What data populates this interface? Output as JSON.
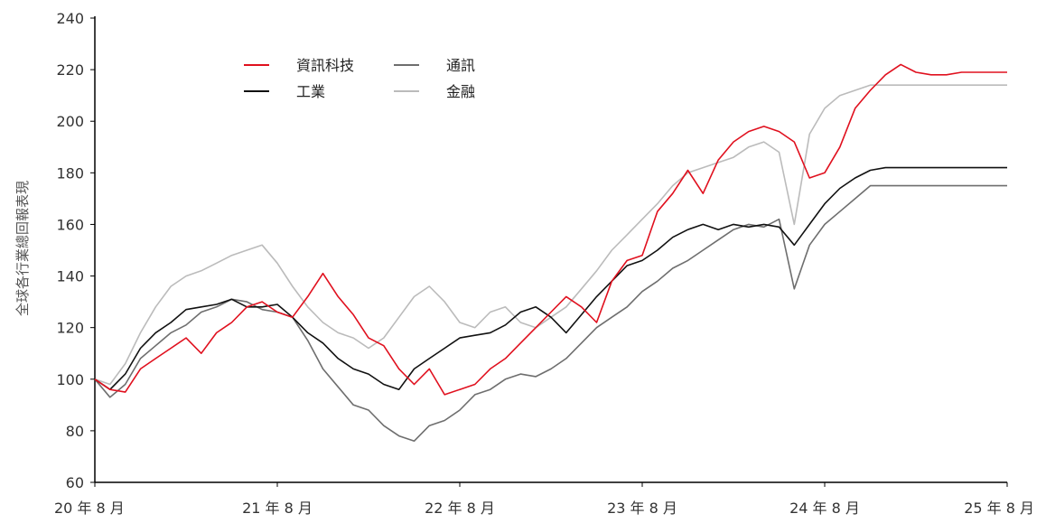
{
  "chart_data": {
    "type": "line",
    "title": "",
    "ylabel": "全球各行業總回報表現",
    "xlabel": "",
    "ylim": [
      60,
      240
    ],
    "y_ticks": [
      60,
      80,
      100,
      120,
      140,
      160,
      180,
      200,
      220,
      240
    ],
    "x_ticks": [
      "20 年 8 月",
      "21 年 8 月",
      "22 年 8 月",
      "23 年 8 月",
      "24 年 8 月",
      "25 年 8 月"
    ],
    "x_range": [
      0,
      60
    ],
    "x_unit": "months since 20 年 8 月",
    "legend": {
      "placement": "top-left",
      "columns": 2
    },
    "series": [
      {
        "name": "資訊科技",
        "color": "#e0101e",
        "x": [
          0,
          1,
          2,
          3,
          4,
          5,
          6,
          7,
          8,
          9,
          10,
          11,
          12,
          13,
          14,
          15,
          16,
          17,
          18,
          19,
          20,
          21,
          22,
          23,
          24,
          25,
          26,
          27,
          28,
          29,
          30,
          31,
          32,
          33,
          34,
          35,
          36,
          37,
          38,
          39,
          40,
          41,
          42,
          43,
          44,
          45,
          46,
          47,
          48,
          49,
          50,
          51,
          52,
          53,
          54,
          55,
          56,
          57,
          58,
          59,
          60
        ],
        "values": [
          100,
          96,
          95,
          104,
          108,
          112,
          116,
          110,
          118,
          122,
          128,
          130,
          126,
          124,
          132,
          141,
          132,
          125,
          116,
          113,
          104,
          98,
          104,
          94,
          96,
          98,
          104,
          108,
          114,
          120,
          126,
          132,
          128,
          122,
          138,
          146,
          148,
          165,
          172,
          181,
          172,
          185,
          192,
          196,
          198,
          196,
          192,
          178,
          180,
          190,
          205,
          212,
          218,
          222,
          219,
          218,
          218,
          219,
          219,
          219,
          219
        ]
      },
      {
        "name": "通訊",
        "color": "#6e6e6e",
        "x": [
          0,
          1,
          2,
          3,
          4,
          5,
          6,
          7,
          8,
          9,
          10,
          11,
          12,
          13,
          14,
          15,
          16,
          17,
          18,
          19,
          20,
          21,
          22,
          23,
          24,
          25,
          26,
          27,
          28,
          29,
          30,
          31,
          32,
          33,
          34,
          35,
          36,
          37,
          38,
          39,
          40,
          41,
          42,
          43,
          44,
          45,
          46,
          47,
          48,
          49,
          50,
          51,
          52,
          53,
          54,
          55,
          56,
          57,
          58,
          59,
          60
        ],
        "values": [
          100,
          93,
          98,
          108,
          113,
          118,
          121,
          126,
          128,
          131,
          130,
          127,
          126,
          124,
          115,
          104,
          97,
          90,
          88,
          82,
          78,
          76,
          82,
          84,
          88,
          94,
          96,
          100,
          102,
          101,
          104,
          108,
          114,
          120,
          124,
          128,
          134,
          138,
          143,
          146,
          150,
          154,
          158,
          160,
          159,
          162,
          135,
          152,
          160,
          165,
          170,
          175,
          175,
          175,
          175,
          175,
          175,
          175,
          175,
          175,
          175
        ]
      },
      {
        "name": "工業",
        "color": "#111111",
        "x": [
          0,
          1,
          2,
          3,
          4,
          5,
          6,
          7,
          8,
          9,
          10,
          11,
          12,
          13,
          14,
          15,
          16,
          17,
          18,
          19,
          20,
          21,
          22,
          23,
          24,
          25,
          26,
          27,
          28,
          29,
          30,
          31,
          32,
          33,
          34,
          35,
          36,
          37,
          38,
          39,
          40,
          41,
          42,
          43,
          44,
          45,
          46,
          47,
          48,
          49,
          50,
          51,
          52,
          53,
          54,
          55,
          56,
          57,
          58,
          59,
          60
        ],
        "values": [
          100,
          96,
          102,
          112,
          118,
          122,
          127,
          128,
          129,
          131,
          128,
          128,
          129,
          124,
          118,
          114,
          108,
          104,
          102,
          98,
          96,
          104,
          108,
          112,
          116,
          117,
          118,
          121,
          126,
          128,
          124,
          118,
          125,
          132,
          138,
          144,
          146,
          150,
          155,
          158,
          160,
          158,
          160,
          159,
          160,
          159,
          152,
          160,
          168,
          174,
          178,
          181,
          182,
          182,
          182,
          182,
          182,
          182,
          182,
          182,
          182
        ]
      },
      {
        "name": "金融",
        "color": "#bbbbbb",
        "x": [
          0,
          1,
          2,
          3,
          4,
          5,
          6,
          7,
          8,
          9,
          10,
          11,
          12,
          13,
          14,
          15,
          16,
          17,
          18,
          19,
          20,
          21,
          22,
          23,
          24,
          25,
          26,
          27,
          28,
          29,
          30,
          31,
          32,
          33,
          34,
          35,
          36,
          37,
          38,
          39,
          40,
          41,
          42,
          43,
          44,
          45,
          46,
          47,
          48,
          49,
          50,
          51,
          52,
          53,
          54,
          55,
          56,
          57,
          58,
          59,
          60
        ],
        "values": [
          100,
          98,
          106,
          118,
          128,
          136,
          140,
          142,
          145,
          148,
          150,
          152,
          145,
          136,
          128,
          122,
          118,
          116,
          112,
          116,
          124,
          132,
          136,
          130,
          122,
          120,
          126,
          128,
          122,
          120,
          124,
          128,
          135,
          142,
          150,
          156,
          162,
          168,
          175,
          180,
          182,
          184,
          186,
          190,
          192,
          188,
          160,
          195,
          205,
          210,
          212,
          214,
          214,
          214,
          214,
          214,
          214,
          214,
          214,
          214,
          214
        ]
      }
    ]
  }
}
